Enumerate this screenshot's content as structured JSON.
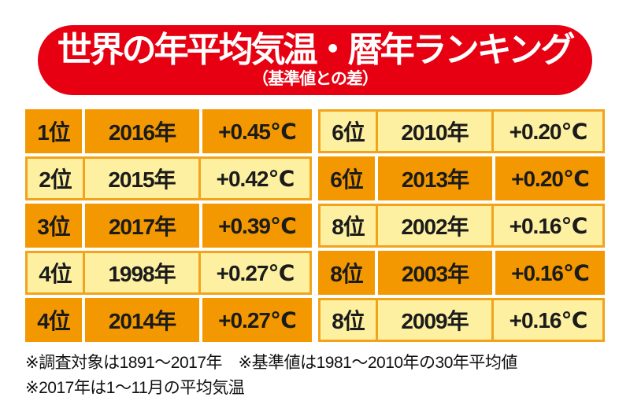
{
  "banner": {
    "title": "世界の年平均気温・暦年ランキング",
    "subtitle": "（基準値との差）"
  },
  "chart_data": {
    "type": "table",
    "title": "世界の年平均気温・暦年ランキング",
    "subtitle": "（基準値との差）",
    "unit": "℃",
    "rows": [
      {
        "rank": 1,
        "year": 2016,
        "diff_c": 0.45
      },
      {
        "rank": 2,
        "year": 2015,
        "diff_c": 0.42
      },
      {
        "rank": 3,
        "year": 2017,
        "diff_c": 0.39
      },
      {
        "rank": 4,
        "year": 1998,
        "diff_c": 0.27
      },
      {
        "rank": 4,
        "year": 2014,
        "diff_c": 0.27
      },
      {
        "rank": 6,
        "year": 2010,
        "diff_c": 0.2
      },
      {
        "rank": 6,
        "year": 2013,
        "diff_c": 0.2
      },
      {
        "rank": 8,
        "year": 2002,
        "diff_c": 0.16
      },
      {
        "rank": 8,
        "year": 2003,
        "diff_c": 0.16
      },
      {
        "rank": 8,
        "year": 2009,
        "diff_c": 0.16
      }
    ],
    "notes": [
      "※調査対象は1891～2017年",
      "※基準値は1981～2010年の30年平均値",
      "※2017年は1～11月の平均気温"
    ]
  },
  "left_table": {
    "rows": [
      {
        "rank": "1位",
        "year": "2016年",
        "diff": "+0.45℃"
      },
      {
        "rank": "2位",
        "year": "2015年",
        "diff": "+0.42℃"
      },
      {
        "rank": "3位",
        "year": "2017年",
        "diff": "+0.39℃"
      },
      {
        "rank": "4位",
        "year": "1998年",
        "diff": "+0.27℃"
      },
      {
        "rank": "4位",
        "year": "2014年",
        "diff": "+0.27℃"
      }
    ]
  },
  "right_table": {
    "rows": [
      {
        "rank": "6位",
        "year": "2010年",
        "diff": "+0.20℃"
      },
      {
        "rank": "6位",
        "year": "2013年",
        "diff": "+0.20℃"
      },
      {
        "rank": "8位",
        "year": "2002年",
        "diff": "+0.16℃"
      },
      {
        "rank": "8位",
        "year": "2003年",
        "diff": "+0.16℃"
      },
      {
        "rank": "8位",
        "year": "2009年",
        "diff": "+0.16℃"
      }
    ]
  },
  "footnotes": {
    "line1": "※調査対象は1891～2017年　※基準値は1981～2010年の30年平均値",
    "line2": "※2017年は1～11月の平均気温"
  },
  "colors": {
    "banner_red": "#E60012",
    "cell_orange": "#F39800",
    "cell_yellow": "#FDF1A1",
    "border_orange": "#F3A31B",
    "text": "#1B1B1B"
  }
}
